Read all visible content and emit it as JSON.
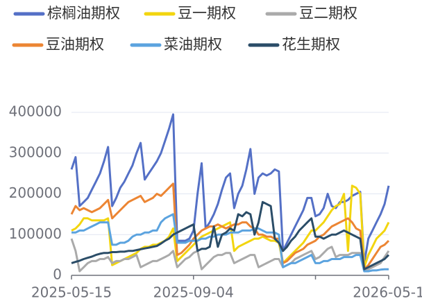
{
  "chart_data": {
    "type": "line",
    "categories": [
      "2025-05-15",
      null,
      null,
      null,
      null,
      null,
      null,
      null,
      null,
      null,
      null,
      null,
      null,
      null,
      null,
      null,
      null,
      null,
      null,
      null,
      null,
      null,
      null,
      null,
      null,
      null,
      null,
      null,
      null,
      null,
      "2025-09-04",
      null,
      null,
      null,
      null,
      null,
      null,
      null,
      null,
      null,
      null,
      null,
      null,
      null,
      null,
      null,
      null,
      null,
      null,
      null,
      null,
      null,
      null,
      null,
      null,
      null,
      null,
      null,
      null,
      null,
      null,
      null,
      null,
      null,
      null,
      null,
      null,
      null,
      null,
      null,
      null,
      null,
      null,
      null,
      null,
      null,
      null,
      null,
      "2026-05-1"
    ],
    "ylim": [
      0,
      400000
    ],
    "yticks": [
      0,
      100000,
      200000,
      300000,
      400000
    ],
    "grid": true,
    "series": [
      {
        "name": "棕榈油期权",
        "color": "#5470c6",
        "values": [
          260000,
          290000,
          170000,
          180000,
          190000,
          210000,
          230000,
          250000,
          280000,
          315000,
          170000,
          190000,
          215000,
          230000,
          250000,
          270000,
          300000,
          325000,
          235000,
          250000,
          265000,
          280000,
          300000,
          330000,
          360000,
          395000,
          85000,
          85000,
          85000,
          90000,
          110000,
          200000,
          275000,
          115000,
          130000,
          150000,
          175000,
          210000,
          240000,
          250000,
          165000,
          200000,
          220000,
          260000,
          310000,
          200000,
          240000,
          250000,
          245000,
          250000,
          260000,
          255000,
          60000,
          80000,
          100000,
          120000,
          140000,
          160000,
          190000,
          190000,
          145000,
          150000,
          165000,
          200000,
          170000,
          165000,
          180000,
          180000,
          185000,
          195000,
          200000,
          205000,
          30000,
          90000,
          110000,
          130000,
          150000,
          175000,
          220000
        ]
      },
      {
        "name": "豆一期权",
        "color": "#f2d50f",
        "values": [
          110000,
          115000,
          125000,
          140000,
          140000,
          135000,
          135000,
          135000,
          135000,
          140000,
          25000,
          30000,
          35000,
          40000,
          45000,
          50000,
          55000,
          65000,
          70000,
          70000,
          75000,
          75000,
          80000,
          85000,
          95000,
          115000,
          35000,
          45000,
          55000,
          65000,
          75000,
          85000,
          95000,
          100000,
          105000,
          110000,
          115000,
          120000,
          125000,
          130000,
          60000,
          70000,
          75000,
          80000,
          85000,
          90000,
          90000,
          95000,
          90000,
          85000,
          85000,
          80000,
          30000,
          40000,
          50000,
          60000,
          70000,
          80000,
          95000,
          110000,
          110000,
          120000,
          130000,
          145000,
          160000,
          170000,
          175000,
          200000,
          60000,
          220000,
          215000,
          200000,
          20000,
          50000,
          70000,
          90000,
          100000,
          110000,
          130000
        ]
      },
      {
        "name": "豆二期权",
        "color": "#aaaaaa",
        "values": [
          90000,
          60000,
          10000,
          20000,
          30000,
          35000,
          35000,
          40000,
          40000,
          45000,
          30000,
          35000,
          35000,
          40000,
          40000,
          45000,
          50000,
          20000,
          25000,
          30000,
          35000,
          35000,
          40000,
          45000,
          50000,
          60000,
          20000,
          30000,
          40000,
          45000,
          55000,
          60000,
          15000,
          25000,
          35000,
          45000,
          50000,
          50000,
          55000,
          55000,
          30000,
          35000,
          40000,
          45000,
          50000,
          50000,
          20000,
          25000,
          30000,
          35000,
          40000,
          40000,
          20000,
          25000,
          30000,
          40000,
          45000,
          50000,
          55000,
          60000,
          40000,
          45000,
          55000,
          65000,
          70000,
          45000,
          50000,
          50000,
          50000,
          55000,
          55000,
          55000,
          10000,
          15000,
          20000,
          25000,
          30000,
          45000,
          60000
        ]
      },
      {
        "name": "豆油期权",
        "color": "#ec8533",
        "values": [
          150000,
          170000,
          160000,
          165000,
          160000,
          155000,
          160000,
          165000,
          175000,
          185000,
          140000,
          150000,
          160000,
          170000,
          180000,
          185000,
          190000,
          195000,
          180000,
          185000,
          190000,
          200000,
          195000,
          205000,
          215000,
          225000,
          50000,
          55000,
          65000,
          75000,
          90000,
          100000,
          110000,
          115000,
          120000,
          120000,
          125000,
          120000,
          115000,
          120000,
          125000,
          125000,
          130000,
          130000,
          120000,
          115000,
          100000,
          100000,
          95000,
          95000,
          90000,
          90000,
          30000,
          35000,
          45000,
          55000,
          60000,
          65000,
          75000,
          80000,
          85000,
          95000,
          100000,
          110000,
          120000,
          125000,
          130000,
          135000,
          140000,
          130000,
          115000,
          110000,
          15000,
          25000,
          40000,
          55000,
          70000,
          75000,
          85000
        ]
      },
      {
        "name": "菜油期权",
        "color": "#5ba3df",
        "values": [
          105000,
          105000,
          110000,
          110000,
          115000,
          120000,
          125000,
          130000,
          130000,
          130000,
          75000,
          75000,
          80000,
          80000,
          85000,
          95000,
          100000,
          100000,
          105000,
          105000,
          110000,
          110000,
          130000,
          140000,
          145000,
          150000,
          80000,
          80000,
          80000,
          85000,
          85000,
          85000,
          90000,
          90000,
          95000,
          95000,
          100000,
          100000,
          100000,
          105000,
          105000,
          105000,
          110000,
          110000,
          110000,
          115000,
          115000,
          110000,
          105000,
          105000,
          105000,
          100000,
          20000,
          25000,
          30000,
          30000,
          35000,
          40000,
          45000,
          50000,
          30000,
          30000,
          35000,
          35000,
          40000,
          40000,
          40000,
          45000,
          45000,
          45000,
          50000,
          50000,
          10000,
          10000,
          12000,
          12000,
          14000,
          15000,
          15000
        ]
      },
      {
        "name": "花生期权",
        "color": "#2b4d68",
        "values": [
          30000,
          33000,
          36000,
          40000,
          43000,
          46000,
          50000,
          53000,
          55000,
          55000,
          57000,
          57000,
          58000,
          58000,
          60000,
          60000,
          62000,
          64000,
          66000,
          68000,
          70000,
          72000,
          78000,
          85000,
          90000,
          100000,
          105000,
          110000,
          115000,
          120000,
          125000,
          60000,
          65000,
          65000,
          70000,
          120000,
          70000,
          100000,
          105000,
          115000,
          110000,
          150000,
          145000,
          155000,
          150000,
          100000,
          130000,
          180000,
          175000,
          170000,
          90000,
          80000,
          60000,
          70000,
          85000,
          95000,
          110000,
          120000,
          130000,
          140000,
          95000,
          95000,
          90000,
          95000,
          100000,
          100000,
          105000,
          110000,
          105000,
          100000,
          95000,
          90000,
          15000,
          20000,
          25000,
          30000,
          35000,
          40000,
          50000
        ]
      }
    ]
  }
}
